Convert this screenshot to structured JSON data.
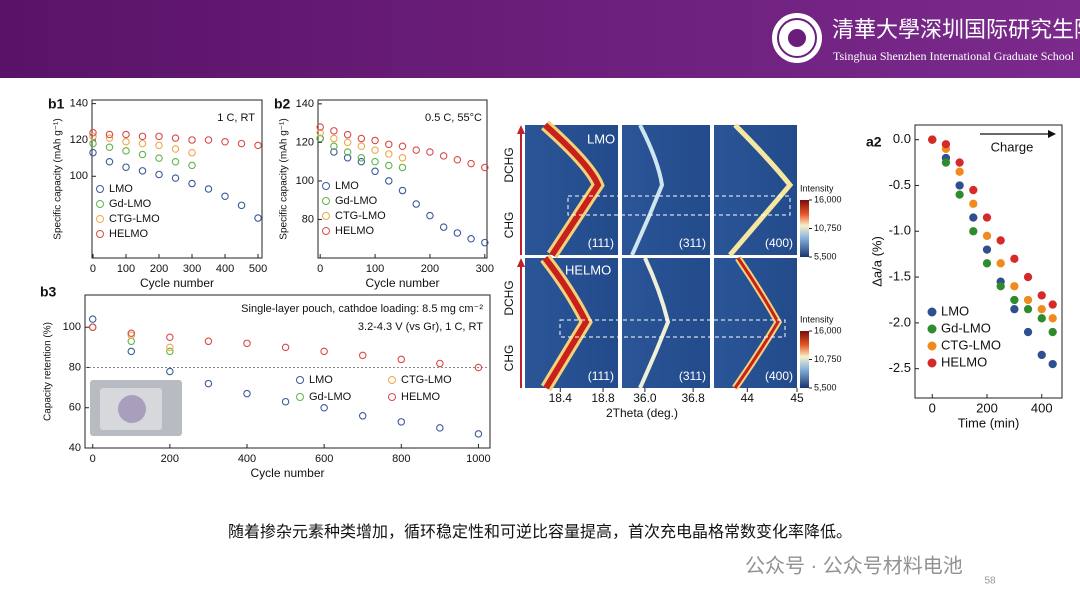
{
  "header": {
    "school_cn": "清華大學深圳国际研究生院",
    "school_en": "Tsinghua Shenzhen International Graduate School"
  },
  "caption": "随着掺杂元素种类增加，循环稳定性和可逆比容量提高，首次充电晶格常数变化率降低。",
  "watermark": "公众号 · 公众号材料电池",
  "page_number": "58",
  "chart_data": [
    {
      "type": "scatter",
      "panel": "b1",
      "notes": [
        "1 C, RT"
      ],
      "marker": "open",
      "xlabel": "Cycle number",
      "ylabel": "Specific capacity (mAh g⁻¹)",
      "x": [
        0,
        50,
        100,
        150,
        200,
        250,
        300,
        350,
        400,
        450,
        500
      ],
      "xlim": [
        -3,
        512
      ],
      "xticks": [
        0,
        100,
        200,
        300,
        400,
        500
      ],
      "ylim": [
        55,
        142
      ],
      "yticks": [
        100,
        120,
        140
      ],
      "series": [
        {
          "name": "LMO",
          "color": "#3d5a9e",
          "values": [
            113,
            108,
            105,
            103,
            101,
            99,
            96,
            93,
            89,
            84,
            77
          ]
        },
        {
          "name": "Gd-LMO",
          "color": "#5fb548",
          "values": [
            118,
            116,
            114,
            112,
            110,
            108,
            106,
            null,
            null,
            null,
            null
          ]
        },
        {
          "name": "CTG-LMO",
          "color": "#f0a848",
          "values": [
            122,
            121,
            119,
            118,
            117,
            115,
            113,
            null,
            null,
            null,
            null
          ]
        },
        {
          "name": "HELMO",
          "color": "#dc4a4a",
          "values": [
            124,
            123,
            123,
            122,
            122,
            121,
            120,
            120,
            119,
            118,
            117
          ]
        }
      ]
    },
    {
      "type": "scatter",
      "panel": "b2",
      "notes": [
        "0.5 C, 55°C"
      ],
      "marker": "open",
      "xlabel": "Cycle number",
      "ylabel": "Specific capacity (mAh g⁻¹)",
      "x": [
        0,
        25,
        50,
        75,
        100,
        125,
        150,
        175,
        200,
        225,
        250,
        275,
        300
      ],
      "xlim": [
        -4,
        304
      ],
      "xticks": [
        0,
        100,
        200,
        300
      ],
      "ylim": [
        60,
        142
      ],
      "yticks": [
        80,
        100,
        120,
        140
      ],
      "series": [
        {
          "name": "LMO",
          "color": "#3d5a9e",
          "values": [
            122,
            115,
            112,
            110,
            105,
            100,
            95,
            88,
            82,
            76,
            73,
            70,
            68
          ]
        },
        {
          "name": "Gd-LMO",
          "color": "#5fb548",
          "values": [
            122,
            118,
            115,
            112,
            110,
            108,
            107,
            null,
            null,
            null,
            null,
            null,
            null
          ]
        },
        {
          "name": "CTG-LMO",
          "color": "#f0a848",
          "values": [
            125,
            122,
            120,
            118,
            116,
            114,
            112,
            null,
            null,
            null,
            null,
            null,
            null
          ]
        },
        {
          "name": "HELMO",
          "color": "#dc4a4a",
          "values": [
            128,
            126,
            124,
            122,
            121,
            119,
            118,
            116,
            115,
            113,
            111,
            109,
            107
          ]
        }
      ]
    },
    {
      "type": "scatter",
      "panel": "b3",
      "notes": [
        "Single-layer pouch, cathdoe loading: 8.5 mg cm⁻²",
        "3.2-4.3 V (vs Gr), 1 C, RT"
      ],
      "marker": "open",
      "xlabel": "Cycle number",
      "ylabel": "Capacity retention (%)",
      "ref_line": 80,
      "x": [
        0,
        100,
        200,
        300,
        400,
        500,
        600,
        700,
        800,
        900,
        1000
      ],
      "xlim": [
        -20,
        1030
      ],
      "xticks": [
        0,
        200,
        400,
        600,
        800,
        1000
      ],
      "ylim": [
        40,
        116
      ],
      "yticks": [
        40,
        60,
        80,
        100
      ],
      "series": [
        {
          "name": "LMO",
          "color": "#3d5a9e",
          "values": [
            104,
            88,
            78,
            72,
            67,
            63,
            60,
            56,
            53,
            50,
            47
          ]
        },
        {
          "name": "Gd-LMO",
          "color": "#5fb548",
          "values": [
            100,
            93,
            88,
            null,
            null,
            null,
            null,
            null,
            null,
            null,
            null
          ]
        },
        {
          "name": "CTG-LMO",
          "color": "#f0a848",
          "values": [
            100,
            96,
            90,
            null,
            null,
            null,
            null,
            null,
            null,
            null,
            null
          ]
        },
        {
          "name": "HELMO",
          "color": "#dc4a4a",
          "values": [
            100,
            97,
            95,
            93,
            92,
            90,
            88,
            86,
            84,
            82,
            80
          ]
        }
      ]
    },
    {
      "type": "heatmap",
      "panels": [
        "LMO",
        "HELMO"
      ],
      "peaks": [
        "(111)",
        "(311)",
        "(400)"
      ],
      "ylabels": [
        "DCHG",
        "CHG"
      ],
      "xlabel": "2Theta (deg.)",
      "xlims": [
        [
          18.07,
          18.94
        ],
        [
          35.62,
          37.08
        ],
        [
          43.33,
          45
        ]
      ],
      "xticks": [
        [
          18.4,
          18.8
        ],
        [
          {
            "value": 36,
            "label": "36.0"
          },
          36.8
        ],
        [
          44,
          45
        ]
      ],
      "colorbar_label": "Intensity",
      "colorbar_lim": [
        5500,
        16000
      ],
      "colorbar_ticks": [
        {
          "value": 16000,
          "label": "16,000"
        },
        {
          "value": 10750,
          "label": "10,750"
        },
        {
          "value": 5500,
          "label": "5,500"
        }
      ]
    },
    {
      "type": "scatter",
      "panel": "a2",
      "notes": [
        "Charge"
      ],
      "marker": "filled",
      "xlabel": "Time (min)",
      "ylabel": "Δa/a (%)",
      "x": [
        0,
        50,
        100,
        150,
        200,
        250,
        300,
        350,
        400,
        440
      ],
      "xlim": [
        -63,
        474
      ],
      "xticks": [
        0,
        200,
        400
      ],
      "ylim": [
        -2.82,
        0.16
      ],
      "yticks": [
        {
          "value": 0,
          "label": "0.0"
        },
        -0.5,
        {
          "value": -1,
          "label": "-1.0"
        },
        -1.5,
        {
          "value": -2,
          "label": "-2.0"
        },
        -2.5
      ],
      "series": [
        {
          "name": "LMO",
          "color": "#2f4f8f",
          "values": [
            0,
            -0.2,
            -0.5,
            -0.85,
            -1.2,
            -1.55,
            -1.85,
            -2.1,
            -2.35,
            -2.45
          ]
        },
        {
          "name": "Gd-LMO",
          "color": "#2e8b2e",
          "values": [
            0,
            -0.25,
            -0.6,
            -1.0,
            -1.35,
            -1.6,
            -1.75,
            -1.85,
            -1.95,
            -2.1
          ]
        },
        {
          "name": "CTG-LMO",
          "color": "#f08a1c",
          "values": [
            0,
            -0.1,
            -0.35,
            -0.7,
            -1.05,
            -1.35,
            -1.6,
            -1.75,
            -1.85,
            -1.95
          ]
        },
        {
          "name": "HELMO",
          "color": "#d62a2a",
          "values": [
            0,
            -0.05,
            -0.25,
            -0.55,
            -0.85,
            -1.1,
            -1.3,
            -1.5,
            -1.7,
            -1.8
          ]
        }
      ]
    }
  ]
}
